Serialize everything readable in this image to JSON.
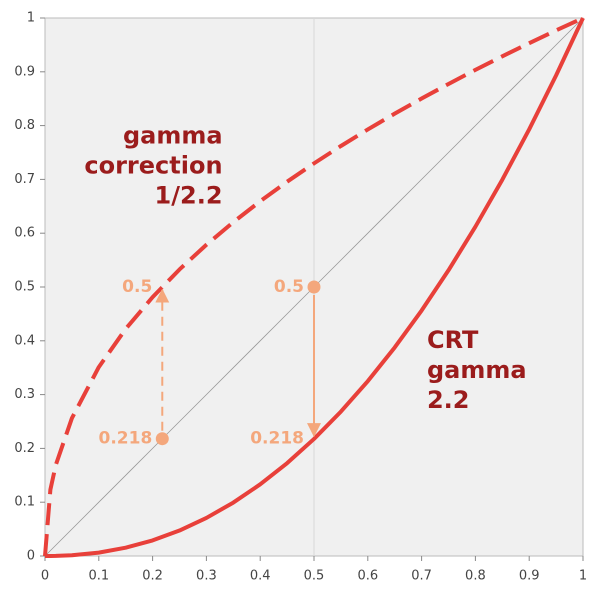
{
  "chart_data": {
    "type": "line",
    "x": [
      0,
      0.01,
      0.02,
      0.05,
      0.1,
      0.15,
      0.2,
      0.25,
      0.3,
      0.35,
      0.4,
      0.45,
      0.5,
      0.55,
      0.6,
      0.65,
      0.7,
      0.75,
      0.8,
      0.85,
      0.9,
      0.95,
      1
    ],
    "series": [
      {
        "color": "#999999",
        "style": "thin",
        "values": [
          0,
          0.01,
          0.02,
          0.05,
          0.1,
          0.15,
          0.2,
          0.25,
          0.3,
          0.35,
          0.4,
          0.45,
          0.5,
          0.55,
          0.6,
          0.65,
          0.7,
          0.75,
          0.8,
          0.85,
          0.9,
          0.95,
          1
        ]
      },
      {
        "color": "#e8403a",
        "style": "dashed",
        "values": [
          0,
          0.1233,
          0.169,
          0.2562,
          0.3511,
          0.4222,
          0.4812,
          0.5326,
          0.5785,
          0.6205,
          0.6594,
          0.6957,
          0.7298,
          0.7621,
          0.7928,
          0.8222,
          0.8503,
          0.8774,
          0.9036,
          0.9288,
          0.9532,
          0.977,
          1
        ]
      },
      {
        "color": "#e8403a",
        "style": "solid",
        "values": [
          0,
          4e-05,
          0.00018,
          0.00137,
          0.00631,
          0.0154,
          0.02899,
          0.04737,
          0.07074,
          0.09929,
          0.1332,
          0.1726,
          0.2176,
          0.2684,
          0.325,
          0.3876,
          0.4563,
          0.5311,
          0.6121,
          0.6994,
          0.7931,
          0.8933,
          1
        ]
      }
    ],
    "xlim": [
      0,
      1
    ],
    "ylim": [
      0,
      1
    ],
    "xticks": [
      0,
      0.1,
      0.2,
      0.3,
      0.4,
      0.5,
      0.6,
      0.7,
      0.8,
      0.9,
      1
    ],
    "yticks": [
      0,
      0.1,
      0.2,
      0.3,
      0.4,
      0.5,
      0.6,
      0.7,
      0.8,
      0.9,
      1
    ],
    "xgrid": [
      0.5
    ],
    "points": [
      {
        "x": 0.218,
        "y": 0.218,
        "label": "0.218"
      },
      {
        "x": 0.218,
        "y": 0.5,
        "label": "0.5"
      },
      {
        "x": 0.5,
        "y": 0.5,
        "label": "0.5"
      },
      {
        "x": 0.5,
        "y": 0.218,
        "label": "0.218"
      }
    ],
    "annotations": [
      {
        "lines": [
          "gamma",
          "correction",
          "1/2.2"
        ],
        "x": 0.33,
        "y": 0.78,
        "align": "end"
      },
      {
        "lines": [
          "CRT",
          "gamma",
          "2.2"
        ],
        "x": 0.71,
        "y": 0.4,
        "align": "start"
      }
    ],
    "point_color": "#f4a77c"
  }
}
